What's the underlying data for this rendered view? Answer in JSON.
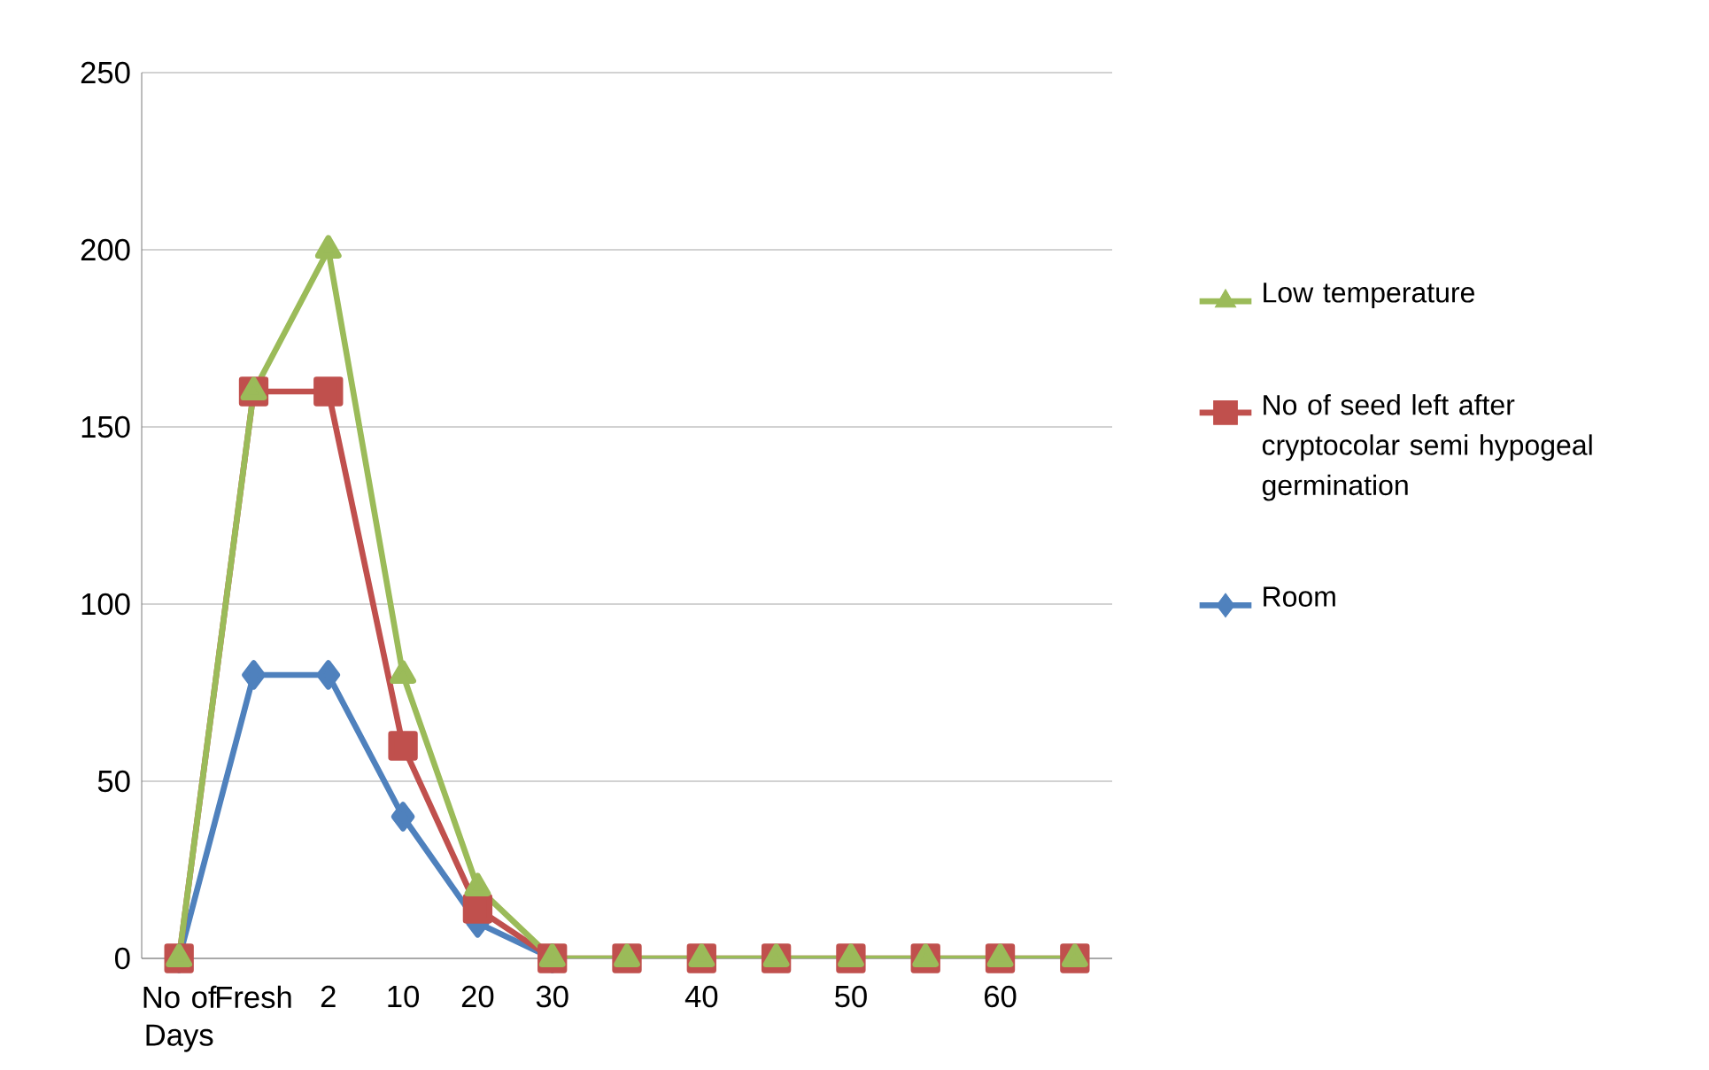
{
  "chart_data": {
    "type": "line",
    "categories": [
      "No of Days",
      "Fresh",
      "2",
      "10",
      "20",
      "30",
      null,
      "40",
      null,
      "50",
      null,
      "60",
      null
    ],
    "series": [
      {
        "name": "Low temperature",
        "color": "#9bbb59",
        "marker": "triangle",
        "values": [
          0,
          160,
          200,
          80,
          20,
          0,
          0,
          0,
          0,
          0,
          0,
          0,
          0
        ]
      },
      {
        "name": "No of seed left after cryptocolar semi hypogeal germination",
        "color": "#c0504d",
        "marker": "square",
        "values": [
          0,
          160,
          160,
          60,
          14,
          0,
          0,
          0,
          0,
          0,
          0,
          0,
          0
        ]
      },
      {
        "name": "Room",
        "color": "#4f81bd",
        "marker": "diamond",
        "values": [
          0,
          80,
          80,
          40,
          10,
          0,
          null,
          null,
          null,
          null,
          null,
          null,
          null
        ]
      }
    ],
    "ylim": [
      0,
      250
    ],
    "yticks": [
      0,
      50,
      100,
      150,
      200,
      250
    ],
    "grid": "y",
    "legend": "right",
    "line_style": "solid"
  }
}
